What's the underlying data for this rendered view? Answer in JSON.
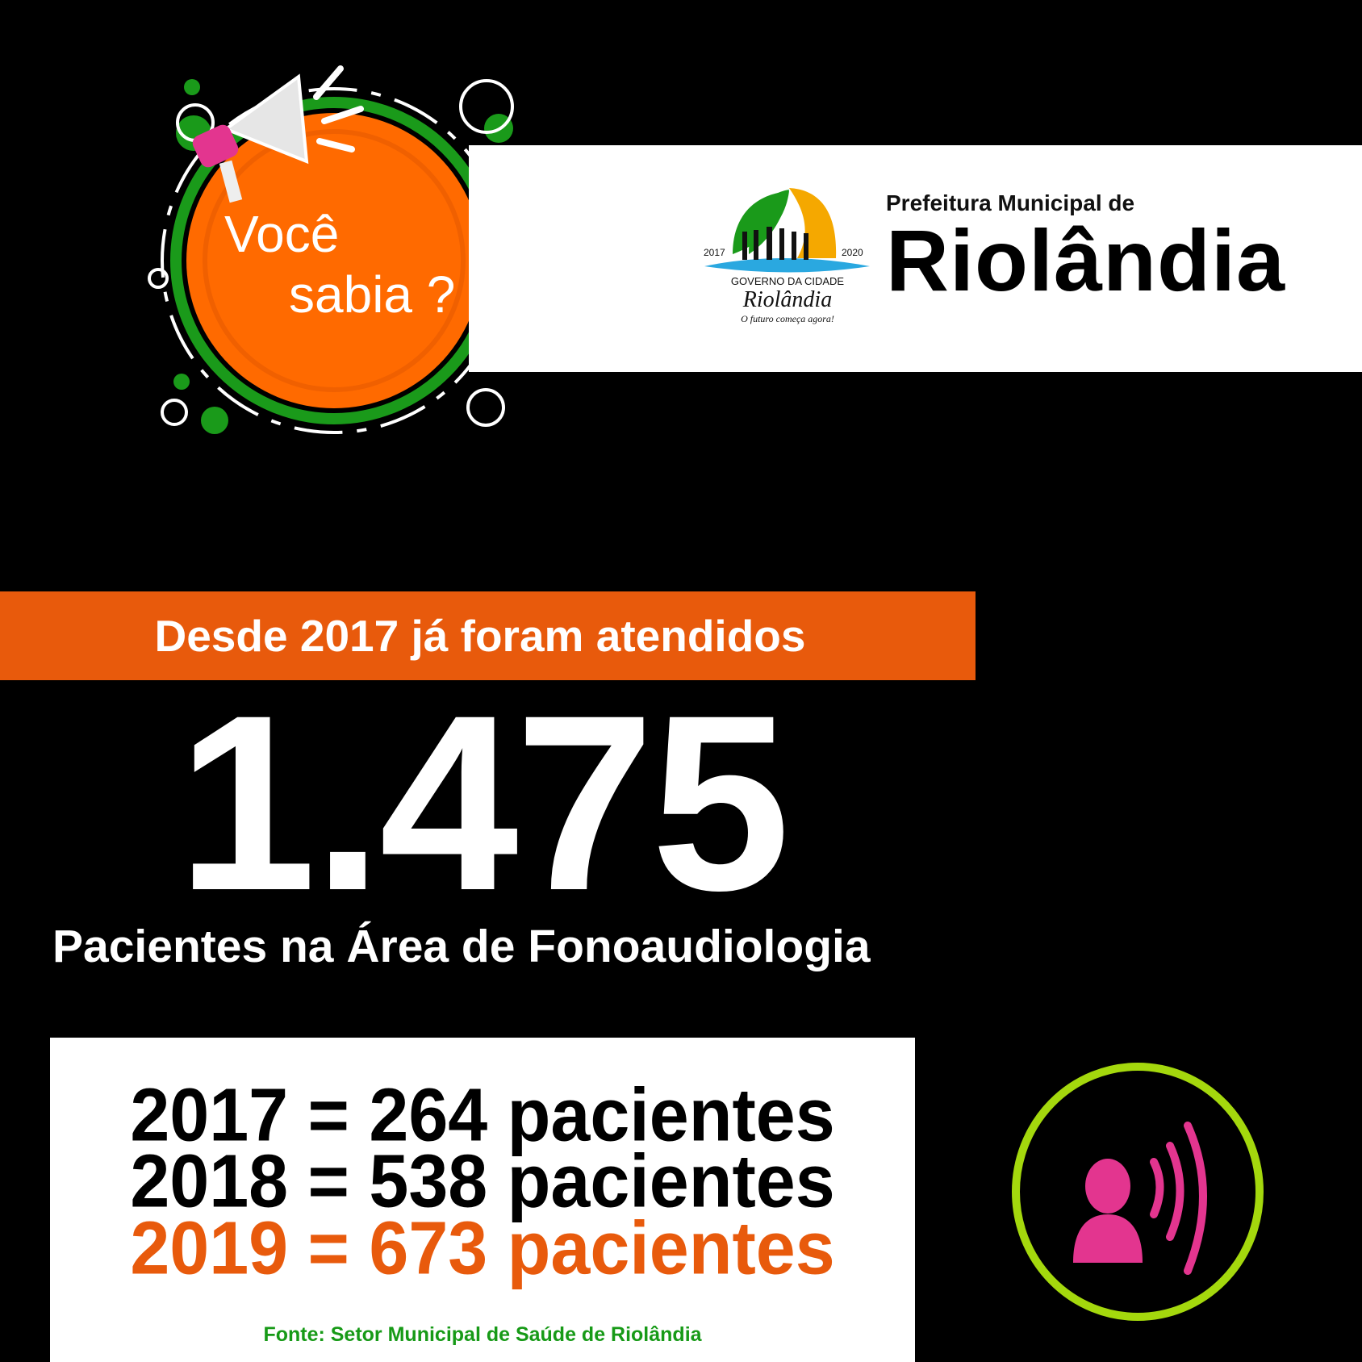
{
  "badge": {
    "line1": "Você",
    "line2": "sabia ?"
  },
  "header": {
    "subtitle": "Prefeitura Municipal de",
    "title": "Riolândia",
    "logo": {
      "year_left": "2017",
      "year_right": "2020",
      "gov": "GOVERNO DA CIDADE",
      "name": "Riolândia",
      "slogan": "O futuro começa agora!"
    }
  },
  "highlight": {
    "banner": "Desde 2017 já foram atendidos",
    "total": "1.475",
    "description": "Pacientes na Área de Fonoaudiologia"
  },
  "yearly": [
    {
      "text": "2017 = 264 pacientes",
      "color": "#000000"
    },
    {
      "text": "2018 = 538 pacientes",
      "color": "#000000"
    },
    {
      "text": "2019 = 673 pacientes",
      "color": "#e85a0c"
    }
  ],
  "source": "Fonte: Setor Municipal de Saúde de Riolândia",
  "colors": {
    "orange": "#e85a0c",
    "badge_orange": "#ff6a00",
    "green": "#1a9a1a",
    "lime": "#a4d80d",
    "pink": "#e3358f"
  }
}
